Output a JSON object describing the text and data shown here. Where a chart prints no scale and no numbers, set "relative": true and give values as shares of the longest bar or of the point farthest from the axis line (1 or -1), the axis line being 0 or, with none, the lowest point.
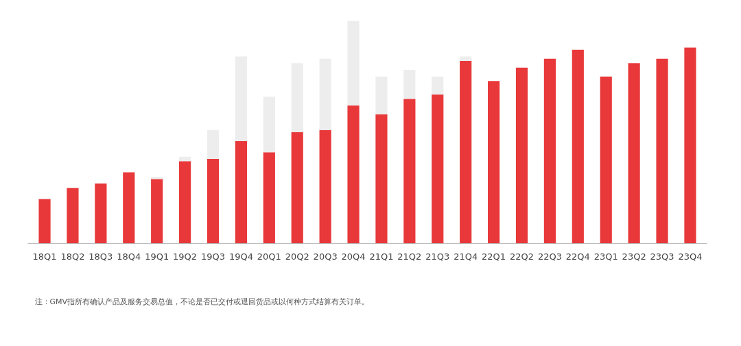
{
  "chart_data": {
    "type": "bar",
    "stacked": true,
    "relative": true,
    "grid": false,
    "categories": [
      "18Q1",
      "18Q2",
      "18Q3",
      "18Q4",
      "19Q1",
      "19Q2",
      "19Q3",
      "19Q4",
      "20Q1",
      "20Q2",
      "20Q3",
      "20Q4",
      "21Q1",
      "21Q2",
      "21Q3",
      "21Q4",
      "22Q1",
      "22Q2",
      "22Q3",
      "22Q4",
      "23Q1",
      "23Q2",
      "23Q3",
      "23Q4"
    ],
    "series": [
      {
        "color": "#e8383a",
        "values": [
          0.2,
          0.25,
          0.27,
          0.32,
          0.29,
          0.37,
          0.38,
          0.46,
          0.41,
          0.5,
          0.51,
          0.62,
          0.58,
          0.65,
          0.67,
          0.82,
          0.73,
          0.79,
          0.83,
          0.87,
          0.75,
          0.81,
          0.83,
          0.88
        ]
      },
      {
        "color": "#ededed",
        "values": [
          0,
          0,
          0,
          0,
          0.01,
          0.02,
          0.13,
          0.38,
          0.25,
          0.31,
          0.32,
          0.38,
          0.17,
          0.13,
          0.08,
          0.02,
          0,
          0,
          0,
          0,
          0,
          0,
          0,
          0
        ]
      }
    ],
    "annotations": [
      "注：GMV指所有确认产品及服务交易总值，不论是否已交付或退回货品或以何种方式结算有关订单。"
    ]
  }
}
